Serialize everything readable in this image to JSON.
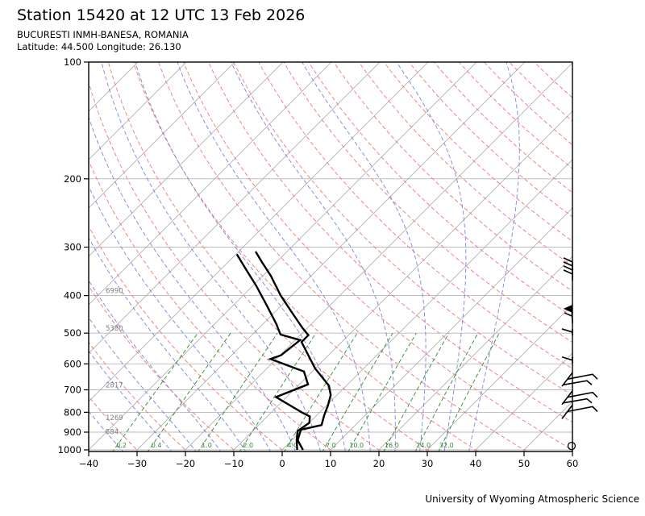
{
  "header": {
    "title": "Station 15420 at 12 UTC 13 Feb 2026",
    "station_line": "BUCURESTI INMH-BANESA, ROMANIA",
    "location_line": "Latitude: 44.500 Longitude: 26.130"
  },
  "footer": {
    "attribution": "University of Wyoming Atmospheric Science"
  },
  "chart_data": {
    "type": "skew-t-log-p",
    "x_axis": {
      "ticks": [
        -40,
        -30,
        -20,
        -10,
        0,
        10,
        20,
        30,
        40,
        50,
        60
      ],
      "unit": "C"
    },
    "y_axis": {
      "ticks": [
        100,
        200,
        300,
        400,
        500,
        600,
        700,
        800,
        900,
        1000
      ],
      "unit": "hPa",
      "scale": "log"
    },
    "pressure_range": [
      100,
      1010
    ],
    "isotherm_step_c": 10,
    "dry_adiabats_theta_c": [
      -30,
      -20,
      -10,
      0,
      10,
      20,
      30,
      40,
      50,
      60,
      70,
      80,
      90,
      100,
      110,
      120,
      130,
      140,
      150,
      160,
      170,
      180,
      190,
      200
    ],
    "moist_adiabats_tw_c": [
      -60,
      -50,
      -40,
      -30,
      -20,
      -15,
      -10,
      -5,
      0,
      5,
      10,
      15,
      20,
      25,
      30,
      35,
      40
    ],
    "mixing_ratio_g_kg": [
      0.2,
      0.4,
      1.0,
      2.0,
      4.0,
      7.0,
      10.0,
      16.0,
      24.0,
      32.0
    ],
    "height_labels": [
      {
        "pressure": 400,
        "label": "6990"
      },
      {
        "pressure": 500,
        "label": "5380"
      },
      {
        "pressure": 700,
        "label": "2817"
      },
      {
        "pressure": 850,
        "label": "1269"
      },
      {
        "pressure": 925,
        "label": "584"
      }
    ],
    "temperature_profile_p_t": [
      [
        308,
        -46.5
      ],
      [
        328,
        -43.0
      ],
      [
        356,
        -38.3
      ],
      [
        400,
        -32.2
      ],
      [
        443,
        -26.3
      ],
      [
        485,
        -21.0
      ],
      [
        506,
        -18.3
      ],
      [
        527,
        -18.3
      ],
      [
        617,
        -10.0
      ],
      [
        683,
        -3.6
      ],
      [
        722,
        -1.3
      ],
      [
        769,
        0.3
      ],
      [
        813,
        1.5
      ],
      [
        863,
        3.0
      ],
      [
        887,
        -0.3
      ],
      [
        944,
        1.2
      ],
      [
        1000,
        4.3
      ]
    ],
    "dewpoint_profile_p_t": [
      [
        313,
        -49.8
      ],
      [
        340,
        -45.2
      ],
      [
        378,
        -39.2
      ],
      [
        427,
        -32.7
      ],
      [
        474,
        -27.2
      ],
      [
        504,
        -24.2
      ],
      [
        521,
        -19.0
      ],
      [
        570,
        -19.8
      ],
      [
        583,
        -21.2
      ],
      [
        628,
        -11.7
      ],
      [
        678,
        -8.2
      ],
      [
        731,
        -12.2
      ],
      [
        802,
        -3.5
      ],
      [
        820,
        -1.2
      ],
      [
        851,
        0.0
      ],
      [
        895,
        -0.7
      ],
      [
        944,
        1.0
      ],
      [
        1000,
        3.1
      ]
    ],
    "wind_barbs": [
      {
        "pressure": 347,
        "style": "nw",
        "feathers": 4
      },
      {
        "pressure": 443,
        "style": "pennant",
        "feathers": 1
      },
      {
        "pressure": 497,
        "style": "w",
        "feathers": 1
      },
      {
        "pressure": 587,
        "style": "w",
        "feathers": 1
      },
      {
        "pressure": 660,
        "style": "se",
        "feathers": 2
      },
      {
        "pressure": 735,
        "style": "se",
        "feathers": 2
      },
      {
        "pressure": 800,
        "style": "se",
        "feathers": 1
      },
      {
        "pressure": 977,
        "style": "calm",
        "feathers": 0
      }
    ],
    "colors": {
      "isobar": "#b8b8b8",
      "isotherm": "#b0b0b0",
      "dry_adiabat": "#ee7777",
      "moist_adiabat": "#8080dd",
      "mixing_ratio": "#2f8b2f",
      "height_label": "#808080",
      "sounding": "#000000",
      "frame": "#000000"
    }
  }
}
